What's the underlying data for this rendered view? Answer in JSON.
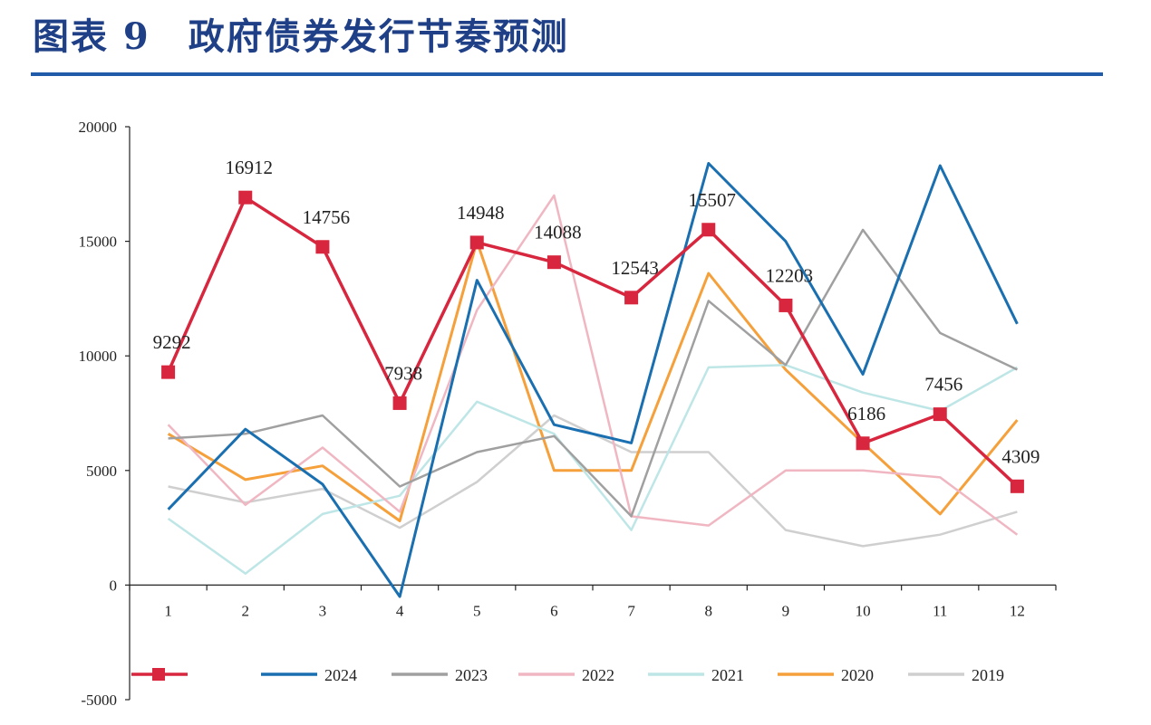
{
  "page": {
    "title": "图表 9　政府债券发行节奏预测",
    "accent_color": "#1f3f87",
    "rule_color": "#1f5ba8"
  },
  "chart_data": {
    "type": "line",
    "title": "",
    "xlabel": "",
    "ylabel": "",
    "x": [
      1,
      2,
      3,
      4,
      5,
      6,
      7,
      8,
      9,
      10,
      11,
      12
    ],
    "ylim": [
      -5000,
      20000
    ],
    "yticks": [
      -5000,
      0,
      5000,
      10000,
      15000,
      20000
    ],
    "legend_position": "bottom",
    "grid": false,
    "series": [
      {
        "name": "",
        "color": "#d7263d",
        "marker": "square",
        "labeled": true,
        "values": [
          9292,
          16912,
          14756,
          7938,
          14948,
          14088,
          12543,
          15507,
          12203,
          6186,
          7456,
          4309
        ]
      },
      {
        "name": "2024",
        "color": "#1a6fb0",
        "marker": "none",
        "labeled": false,
        "values": [
          3300,
          6800,
          4400,
          -500,
          13300,
          7000,
          6200,
          18400,
          15000,
          9200,
          18300,
          11400
        ]
      },
      {
        "name": "2023",
        "color": "#a0a0a0",
        "marker": "none",
        "labeled": false,
        "values": [
          6400,
          6600,
          7400,
          4300,
          5800,
          6500,
          3000,
          12400,
          9600,
          15500,
          11000,
          9400
        ]
      },
      {
        "name": "2022",
        "color": "#f0b7c2",
        "marker": "none",
        "labeled": false,
        "values": [
          7000,
          3500,
          6000,
          3200,
          12000,
          17000,
          3000,
          2600,
          5000,
          5000,
          4700,
          2200
        ]
      },
      {
        "name": "2021",
        "color": "#bfe6e6",
        "marker": "none",
        "labeled": false,
        "values": [
          2900,
          500,
          3100,
          3900,
          8000,
          6600,
          2400,
          9500,
          9600,
          8400,
          7600,
          9500
        ]
      },
      {
        "name": "2020",
        "color": "#f5a03a",
        "marker": "none",
        "labeled": false,
        "values": [
          6600,
          4600,
          5200,
          2800,
          15000,
          5000,
          5000,
          13600,
          9400,
          6200,
          3100,
          7200
        ]
      },
      {
        "name": "2019",
        "color": "#cfcfcf",
        "marker": "none",
        "labeled": false,
        "values": [
          4300,
          3600,
          4200,
          2500,
          4500,
          7400,
          5800,
          5800,
          2400,
          1700,
          2200,
          3200
        ]
      }
    ]
  }
}
